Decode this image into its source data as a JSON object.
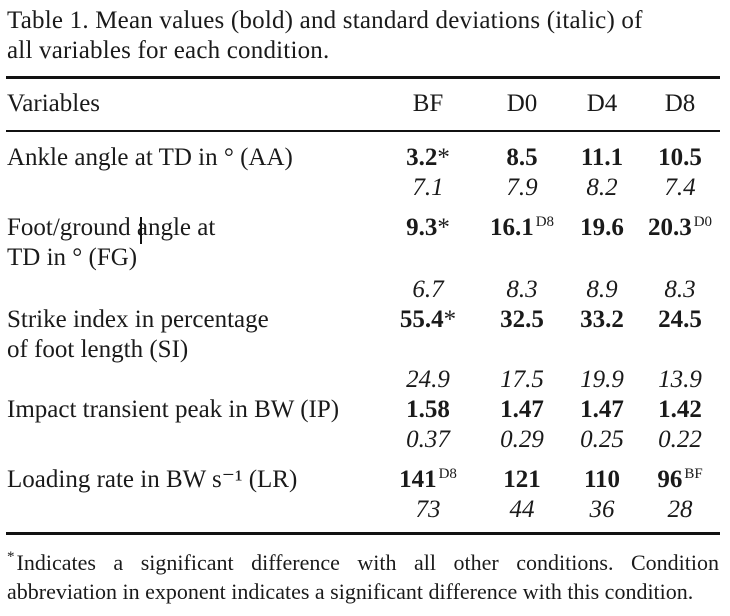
{
  "caption": {
    "line1": "Table 1.   Mean values (bold) and standard deviations (italic) of",
    "line2": "all variables for each condition."
  },
  "table": {
    "headers": [
      "Variables",
      "BF",
      "D0",
      "D4",
      "D8"
    ],
    "rows": [
      {
        "label": [
          "Ankle angle at TD in ° (AA)"
        ],
        "means": [
          {
            "v": "3.2",
            "mark": "*"
          },
          {
            "v": "8.5",
            "mark": ""
          },
          {
            "v": "11.1",
            "mark": ""
          },
          {
            "v": "10.5",
            "mark": ""
          }
        ],
        "sds": [
          "7.1",
          "7.9",
          "8.2",
          "7.4"
        ]
      },
      {
        "label": [
          "Foot/ground angle at",
          "TD in ° (FG)"
        ],
        "means": [
          {
            "v": "9.3",
            "mark": "*"
          },
          {
            "v": "16.1",
            "mark": "D8"
          },
          {
            "v": "19.6",
            "mark": ""
          },
          {
            "v": "20.3",
            "mark": "D0"
          }
        ],
        "sds": [
          "6.7",
          "8.3",
          "8.9",
          "8.3"
        ]
      },
      {
        "label": [
          "Strike index in percentage",
          "of foot length (SI)"
        ],
        "means": [
          {
            "v": "55.4",
            "mark": "*"
          },
          {
            "v": "32.5",
            "mark": ""
          },
          {
            "v": "33.2",
            "mark": ""
          },
          {
            "v": "24.5",
            "mark": ""
          }
        ],
        "sds": [
          "24.9",
          "17.5",
          "19.9",
          "13.9"
        ]
      },
      {
        "label": [
          "Impact transient peak in BW (IP)"
        ],
        "means": [
          {
            "v": "1.58",
            "mark": ""
          },
          {
            "v": "1.47",
            "mark": ""
          },
          {
            "v": "1.47",
            "mark": ""
          },
          {
            "v": "1.42",
            "mark": ""
          }
        ],
        "sds": [
          "0.37",
          "0.29",
          "0.25",
          "0.22"
        ]
      },
      {
        "label": [
          "Loading rate in BW s⁻¹ (LR)"
        ],
        "means": [
          {
            "v": "141",
            "mark": "D8"
          },
          {
            "v": "121",
            "mark": ""
          },
          {
            "v": "110",
            "mark": ""
          },
          {
            "v": "96",
            "mark": "BF"
          }
        ],
        "sds": [
          "73",
          "44",
          "36",
          "28"
        ]
      }
    ]
  },
  "footnote": {
    "mark": "*",
    "text": "Indicates a significant difference with all other conditions. Condition abbreviation in exponent indicates a significant difference with this condition."
  }
}
